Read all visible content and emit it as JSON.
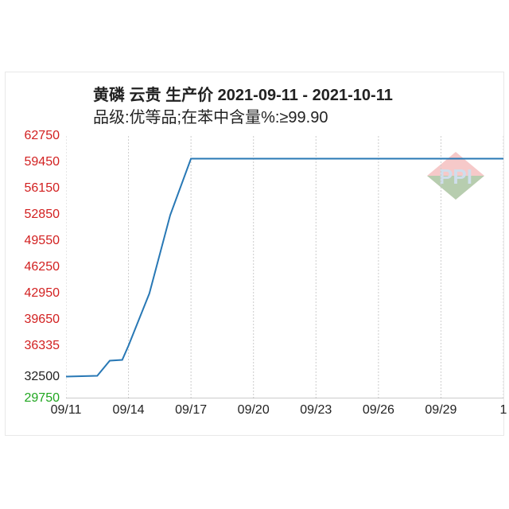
{
  "chart": {
    "type": "line",
    "title": "黄磷 云贵 生产价 2021-09-11 - 2021-10-11",
    "subtitle": "品级:优等品;在苯中含量%:≥99.90",
    "title_fontsize": 20,
    "title_color": "#222222",
    "background_color": "#ffffff",
    "frame_border_color": "#e8e8e8",
    "grid_color": "#cccccc",
    "line_color": "#2878b5",
    "line_width": 2,
    "watermark_colors": {
      "red": "#e03a3a",
      "green": "#2ea84f",
      "text": "#a8c4dd"
    },
    "y": {
      "min": 29750,
      "max": 62750,
      "ticks": [
        29750,
        32500,
        36335,
        39650,
        42950,
        46250,
        49550,
        52850,
        56150,
        59450,
        62750
      ],
      "tick_labels": [
        "29750",
        "32500",
        "36335",
        "39650",
        "42950",
        "46250",
        "49550",
        "52850",
        "56150",
        "59450",
        "62750"
      ],
      "tick_colors": [
        "#1fa61f",
        "#222222",
        "#d22020",
        "#d22020",
        "#d22020",
        "#d22020",
        "#d22020",
        "#d22020",
        "#d22020",
        "#d22020",
        "#d22020"
      ]
    },
    "x": {
      "ticks": [
        0,
        3,
        6,
        9,
        12,
        15,
        18,
        21
      ],
      "tick_labels": [
        "09/11",
        "09/14",
        "09/17",
        "09/20",
        "09/23",
        "09/26",
        "09/29",
        "1"
      ],
      "min": 0,
      "max": 21
    },
    "series": [
      {
        "x": 0,
        "y": 32500
      },
      {
        "x": 1.5,
        "y": 32600
      },
      {
        "x": 2.1,
        "y": 34500
      },
      {
        "x": 2.7,
        "y": 34600
      },
      {
        "x": 3.0,
        "y": 36400
      },
      {
        "x": 4.0,
        "y": 42950
      },
      {
        "x": 5.0,
        "y": 52800
      },
      {
        "x": 6.0,
        "y": 59900
      },
      {
        "x": 21,
        "y": 59900
      }
    ]
  }
}
